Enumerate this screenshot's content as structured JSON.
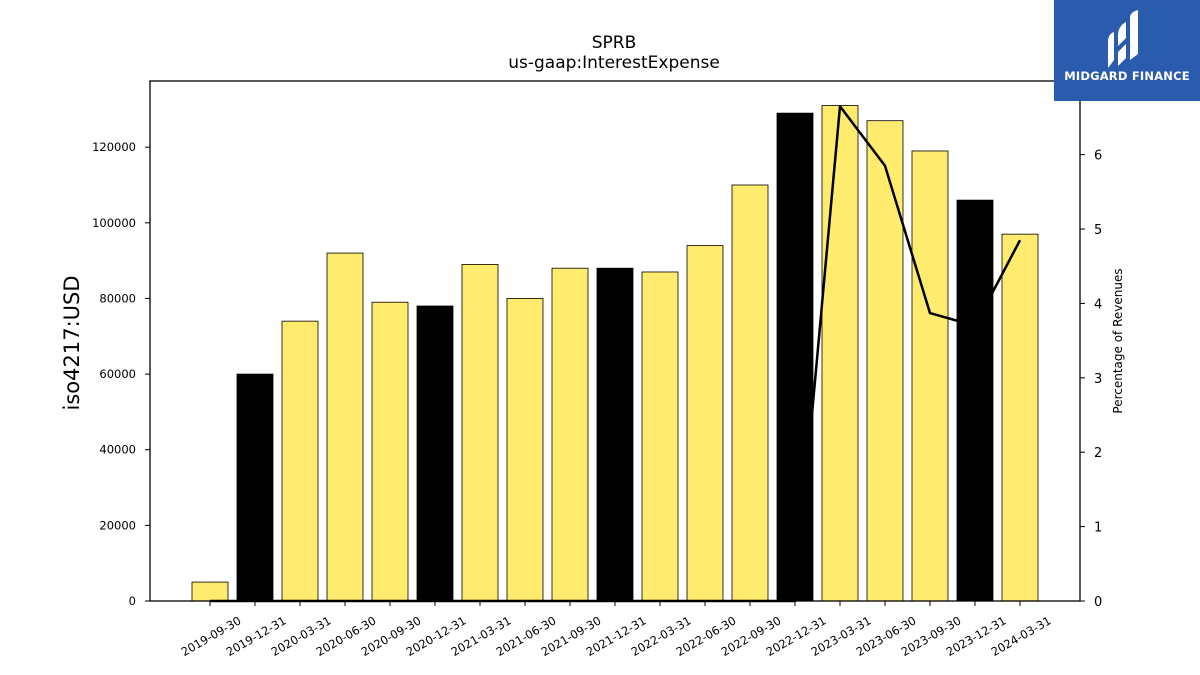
{
  "chart_data": {
    "type": "bar",
    "title": "SPRB",
    "subtitle": "us-gaap:InterestExpense",
    "ylabel": "iso4217:USD",
    "y2label": "Percentage of Revenues",
    "categories": [
      "2019-09-30",
      "2019-12-31",
      "2020-03-31",
      "2020-06-30",
      "2020-09-30",
      "2020-12-31",
      "2021-03-31",
      "2021-06-30",
      "2021-09-30",
      "2021-12-31",
      "2022-03-31",
      "2022-06-30",
      "2022-09-30",
      "2022-12-31",
      "2023-03-31",
      "2023-06-30",
      "2023-09-30",
      "2023-12-31",
      "2024-03-31"
    ],
    "values": [
      5000,
      60000,
      74000,
      92000,
      79000,
      78000,
      89000,
      80000,
      88000,
      88000,
      87000,
      94000,
      110000,
      129000,
      131000,
      127000,
      119000,
      106000,
      97000
    ],
    "bar_colors": [
      "#ffec6e",
      "#000000",
      "#ffec6e",
      "#ffec6e",
      "#ffec6e",
      "#000000",
      "#ffec6e",
      "#ffec6e",
      "#ffec6e",
      "#000000",
      "#ffec6e",
      "#ffec6e",
      "#ffec6e",
      "#000000",
      "#ffec6e",
      "#ffec6e",
      "#ffec6e",
      "#000000",
      "#ffec6e"
    ],
    "line_values": [
      0,
      0,
      0,
      0,
      0,
      0,
      0,
      0,
      0,
      0,
      0,
      0,
      0,
      0,
      6.65,
      5.85,
      3.87,
      3.7,
      4.85
    ],
    "ylim": [
      0,
      137500
    ],
    "yticks": [
      0,
      20000,
      40000,
      60000,
      80000,
      100000,
      120000
    ],
    "y2lim": [
      0,
      6.99
    ],
    "y2ticks": [
      0,
      1,
      2,
      3,
      4,
      5,
      6
    ],
    "grid": false
  },
  "logo": {
    "text": "MIDGARD FINANCE",
    "color": "#2a5bac"
  }
}
